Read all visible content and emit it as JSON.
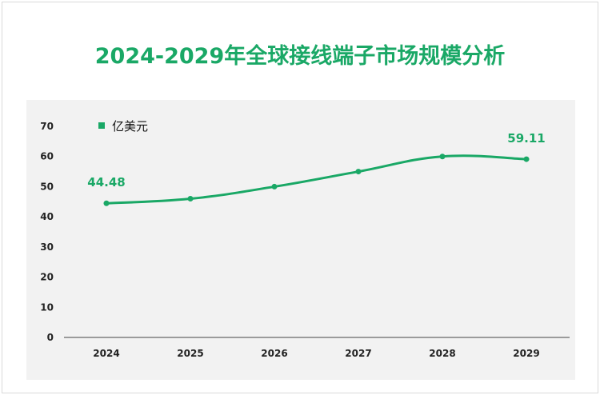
{
  "title": "2024-2029年全球接线端子市场规模分析",
  "colors": {
    "accent": "#1aa866",
    "plot_bg": "#f2f2f2",
    "axis": "#444444"
  },
  "chart_data": {
    "type": "line",
    "title": "2024-2029年全球接线端子市场规模分析",
    "categories": [
      "2024",
      "2025",
      "2026",
      "2027",
      "2028",
      "2029"
    ],
    "series": [
      {
        "name": "亿美元",
        "values": [
          44.48,
          46,
          50,
          55,
          60,
          59.11
        ]
      }
    ],
    "data_labels": [
      {
        "index": 0,
        "text": "44.48"
      },
      {
        "index": 5,
        "text": "59.11"
      }
    ],
    "ylim": [
      0,
      70
    ],
    "yticks": [
      0,
      10,
      20,
      30,
      40,
      50,
      60,
      70
    ],
    "xlabel": "",
    "ylabel": "",
    "grid": false,
    "legend_position": "top-left",
    "smooth": true
  }
}
